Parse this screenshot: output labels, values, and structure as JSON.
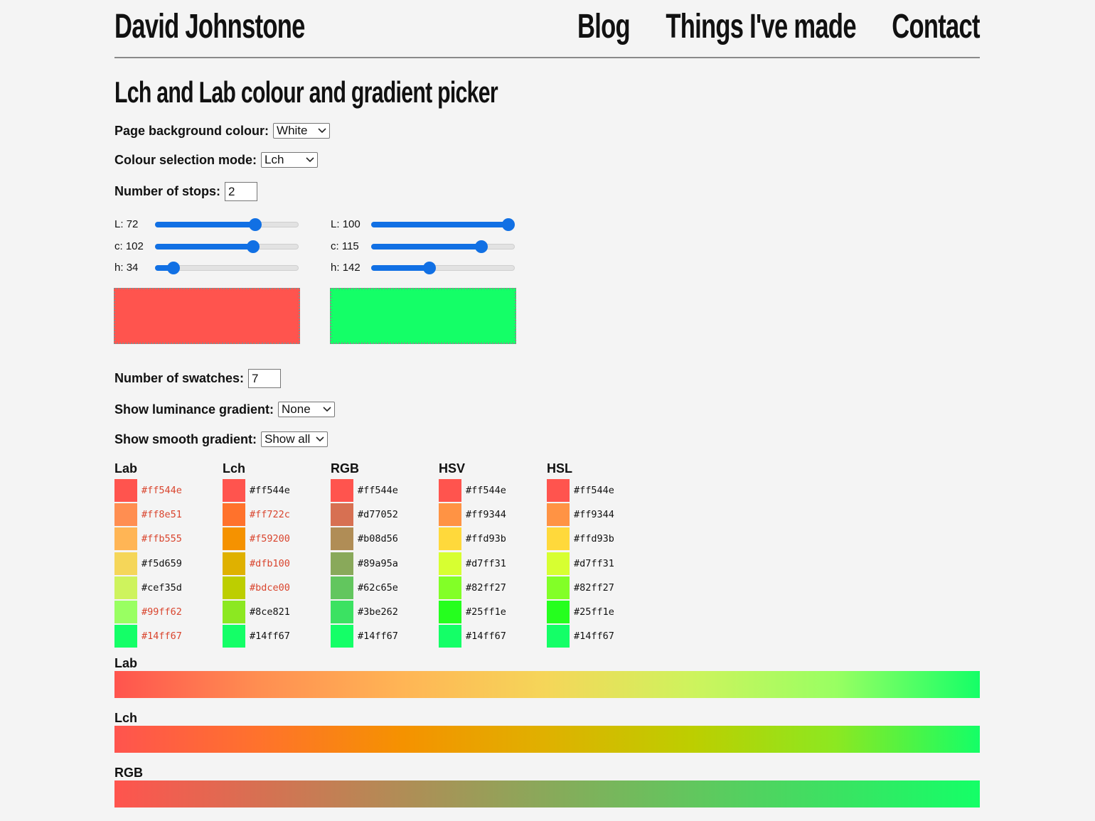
{
  "header": {
    "title": "David Johnstone",
    "nav": [
      "Blog",
      "Things I've made",
      "Contact"
    ]
  },
  "page_title": "Lch and Lab colour and gradient picker",
  "controls": [
    {
      "label": "Page background colour:",
      "value": "White",
      "kind": "select"
    },
    {
      "label": "Colour selection mode:",
      "value": "Lch",
      "kind": "select"
    },
    {
      "label": "Number of stops:",
      "value": 2,
      "kind": "input"
    }
  ],
  "stops": [
    {
      "sliders": [
        {
          "label": "L:",
          "value": 72,
          "min": 0,
          "max": 100
        },
        {
          "label": "c:",
          "value": 102,
          "min": 0,
          "max": 145
        },
        {
          "label": "h:",
          "value": 34,
          "min": 0,
          "max": 360
        }
      ]
    },
    {
      "sliders": [
        {
          "label": "L:",
          "value": 100,
          "min": 0,
          "max": 100
        },
        {
          "label": "c:",
          "value": 115,
          "min": 0,
          "max": 145
        },
        {
          "label": "h:",
          "value": 142,
          "min": 0,
          "max": 360
        }
      ]
    }
  ],
  "swatch_controls": [
    {
      "label": "Number of swatches:",
      "value": 7,
      "kind": "input"
    },
    {
      "label": "Show luminance gradient:",
      "value": "None",
      "kind": "select"
    },
    {
      "label": "Show smooth gradient:",
      "value": "Show all",
      "kind": "select"
    }
  ],
  "swatches": [
    {
      "name": "Lab",
      "items": [
        {
          "hex": "#ff544e",
          "text_color": "#d9452e"
        },
        {
          "hex": "#ff8e51",
          "text_color": "#d9452e"
        },
        {
          "hex": "#ffb555",
          "text_color": "#d9452e"
        },
        {
          "hex": "#f5d659",
          "text_color": "#111111"
        },
        {
          "hex": "#cef35d",
          "text_color": "#111111"
        },
        {
          "hex": "#99ff62",
          "text_color": "#d9452e"
        },
        {
          "hex": "#14ff67",
          "text_color": "#d9452e"
        }
      ]
    },
    {
      "name": "Lch",
      "items": [
        {
          "hex": "#ff544e",
          "text_color": "#111111"
        },
        {
          "hex": "#ff722c",
          "text_color": "#d9452e"
        },
        {
          "hex": "#f59200",
          "text_color": "#d9452e"
        },
        {
          "hex": "#dfb100",
          "text_color": "#d9452e"
        },
        {
          "hex": "#bdce00",
          "text_color": "#d9452e"
        },
        {
          "hex": "#8ce821",
          "text_color": "#111111"
        },
        {
          "hex": "#14ff67",
          "text_color": "#111111"
        }
      ]
    },
    {
      "name": "RGB",
      "items": [
        {
          "hex": "#ff544e",
          "text_color": "#111111"
        },
        {
          "hex": "#d77052",
          "text_color": "#111111"
        },
        {
          "hex": "#b08d56",
          "text_color": "#111111"
        },
        {
          "hex": "#89a95a",
          "text_color": "#111111"
        },
        {
          "hex": "#62c65e",
          "text_color": "#111111"
        },
        {
          "hex": "#3be262",
          "text_color": "#111111"
        },
        {
          "hex": "#14ff67",
          "text_color": "#111111"
        }
      ]
    },
    {
      "name": "HSV",
      "items": [
        {
          "hex": "#ff544e",
          "text_color": "#111111"
        },
        {
          "hex": "#ff9344",
          "text_color": "#111111"
        },
        {
          "hex": "#ffd93b",
          "text_color": "#111111"
        },
        {
          "hex": "#d7ff31",
          "text_color": "#111111"
        },
        {
          "hex": "#82ff27",
          "text_color": "#111111"
        },
        {
          "hex": "#25ff1e",
          "text_color": "#111111"
        },
        {
          "hex": "#14ff67",
          "text_color": "#111111"
        }
      ]
    },
    {
      "name": "HSL",
      "items": [
        {
          "hex": "#ff544e",
          "text_color": "#111111"
        },
        {
          "hex": "#ff9344",
          "text_color": "#111111"
        },
        {
          "hex": "#ffd93b",
          "text_color": "#111111"
        },
        {
          "hex": "#d7ff31",
          "text_color": "#111111"
        },
        {
          "hex": "#82ff27",
          "text_color": "#111111"
        },
        {
          "hex": "#25ff1e",
          "text_color": "#111111"
        },
        {
          "hex": "#14ff67",
          "text_color": "#111111"
        }
      ]
    }
  ],
  "gradients": [
    "Lab",
    "Lch",
    "RGB"
  ]
}
